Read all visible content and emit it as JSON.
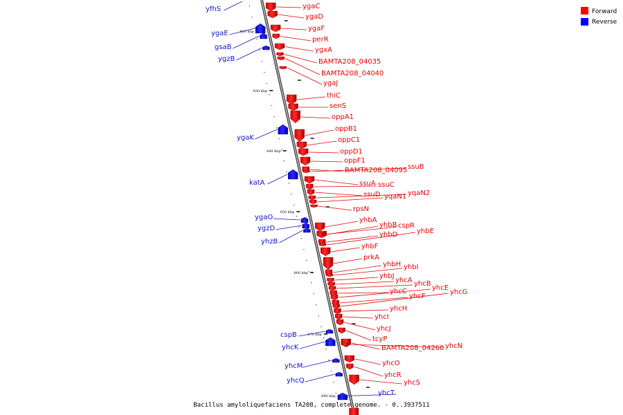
{
  "caption": "Bacillus amyloliquefaciens TA208, complete genome. - 0..3937511",
  "legend": [
    {
      "label": "Forward",
      "color": "#ff0000"
    },
    {
      "label": "Reverse",
      "color": "#0000ff"
    }
  ],
  "ticks": [
    "820 kbp",
    "830 kbp",
    "840 kbp",
    "850 kbp",
    "860 kbp",
    "870 kbp",
    "880 kbp"
  ],
  "forward_genes": [
    "ygaC",
    "ygaD",
    "ygaF",
    "perR",
    "ygxA",
    "BAMTA208_04035",
    "BAMTA208_04040",
    "ygaJ",
    "thiC",
    "senS",
    "oppA1",
    "oppB1",
    "oppC1",
    "oppD1",
    "oppF1",
    "BAMTA208_04095",
    "ssuB",
    "ssuA",
    "ssuC",
    "ssuD",
    "yqaN2",
    "yqaN1",
    "rpsN",
    "yhbA",
    "yhbB",
    "cspR",
    "yhbD",
    "yhbE",
    "yhbF",
    "prkA",
    "yhbH",
    "yhbI",
    "yhbJ",
    "yhcA",
    "yhcB",
    "yhcC",
    "yhcE",
    "yhcF",
    "yhcG",
    "yhcH",
    "yhcI",
    "yhcJ",
    "tcyP",
    "BAMTA208_04260",
    "yhcN",
    "yhcO",
    "yhcR",
    "yhcS"
  ],
  "reverse_genes": [
    "yfhS",
    "ygaE",
    "gsaB",
    "ygzB",
    "ygaK",
    "katA",
    "ygaO",
    "ygzD",
    "yhzB",
    "cspB",
    "yhcK",
    "yhcM",
    "yhcQ",
    "yhcT"
  ]
}
